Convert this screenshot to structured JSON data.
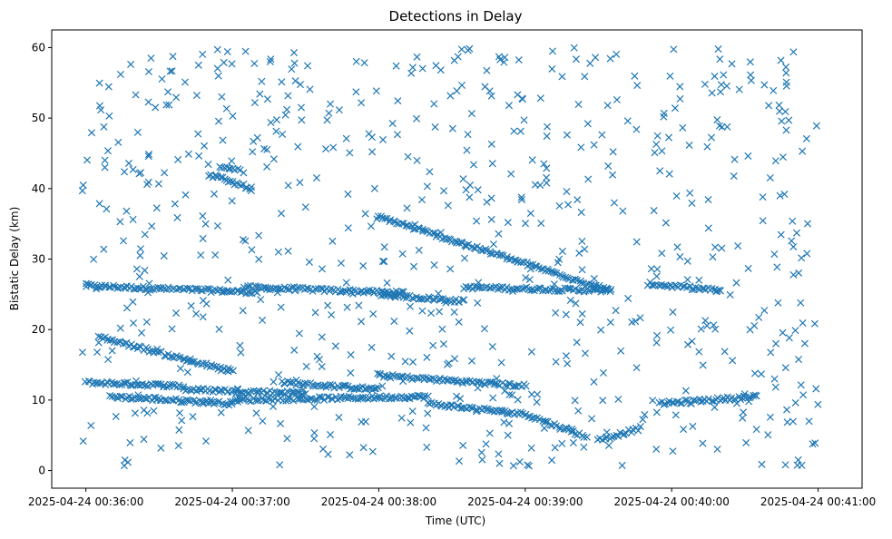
{
  "chart_data": {
    "type": "scatter",
    "title": "Detections in Delay",
    "xlabel": "Time (UTC)",
    "ylabel": "Bistatic Delay (km)",
    "xlim": [
      "2025-04-24 00:35:46",
      "2025-04-24 00:41:18"
    ],
    "ylim": [
      -2.5,
      62.5
    ],
    "xticks": [
      "2025-04-24 00:36:00",
      "2025-04-24 00:37:00",
      "2025-04-24 00:38:00",
      "2025-04-24 00:39:00",
      "2025-04-24 00:40:00",
      "2025-04-24 00:41:00"
    ],
    "yticks": [
      0,
      10,
      20,
      30,
      40,
      50,
      60
    ],
    "marker": "x",
    "color": "#1f77b4",
    "grid": false,
    "series": [
      {
        "x_start": "2025-04-24 00:36:00",
        "tracks": [
          {
            "t0": "00:36:00",
            "t1": "00:37:10",
            "d0": 26.2,
            "d1": 25.3
          },
          {
            "t0": "00:37:05",
            "t1": "00:38:10",
            "d0": 26.0,
            "d1": 25.2
          },
          {
            "t0": "00:38:00",
            "t1": "00:38:35",
            "d0": 25.0,
            "d1": 24.0
          },
          {
            "t0": "00:38:35",
            "t1": "00:39:35",
            "d0": 26.0,
            "d1": 25.5
          },
          {
            "t0": "00:39:50",
            "t1": "00:40:20",
            "d0": 26.5,
            "d1": 25.5
          },
          {
            "t0": "00:36:00",
            "t1": "00:36:40",
            "d0": 12.5,
            "d1": 12.0
          },
          {
            "t0": "00:36:40",
            "t1": "00:37:30",
            "d0": 11.5,
            "d1": 11.0
          },
          {
            "t0": "00:37:20",
            "t1": "00:38:00",
            "d0": 12.5,
            "d1": 11.5
          },
          {
            "t0": "00:38:00",
            "t1": "00:39:00",
            "d0": 13.5,
            "d1": 12.0
          },
          {
            "t0": "00:36:10",
            "t1": "00:37:00",
            "d0": 10.5,
            "d1": 9.5
          },
          {
            "t0": "00:37:00",
            "t1": "00:38:20",
            "d0": 10.0,
            "d1": 10.5
          },
          {
            "t0": "00:38:20",
            "t1": "00:39:00",
            "d0": 9.5,
            "d1": 8.0
          },
          {
            "t0": "00:39:00",
            "t1": "00:39:25",
            "d0": 8.0,
            "d1": 4.8
          },
          {
            "t0": "00:39:30",
            "t1": "00:39:47",
            "d0": 4.3,
            "d1": 6.0
          },
          {
            "t0": "00:39:55",
            "t1": "00:40:35",
            "d0": 9.5,
            "d1": 10.5
          },
          {
            "t0": "00:36:05",
            "t1": "00:37:00",
            "d0": 19.0,
            "d1": 14.0
          },
          {
            "t0": "00:38:00",
            "t1": "00:39:35",
            "d0": 36.0,
            "d1": 25.5
          },
          {
            "t0": "00:36:50",
            "t1": "00:37:08",
            "d0": 42.0,
            "d1": 40.0
          },
          {
            "t0": "00:36:55",
            "t1": "00:37:03",
            "d0": 43.0,
            "d1": 42.5
          }
        ],
        "scatter_count": 700,
        "scatter_range": {
          "t0": "00:35:58",
          "t1": "00:41:00",
          "d0": 0.5,
          "d1": 60.0
        }
      }
    ]
  }
}
